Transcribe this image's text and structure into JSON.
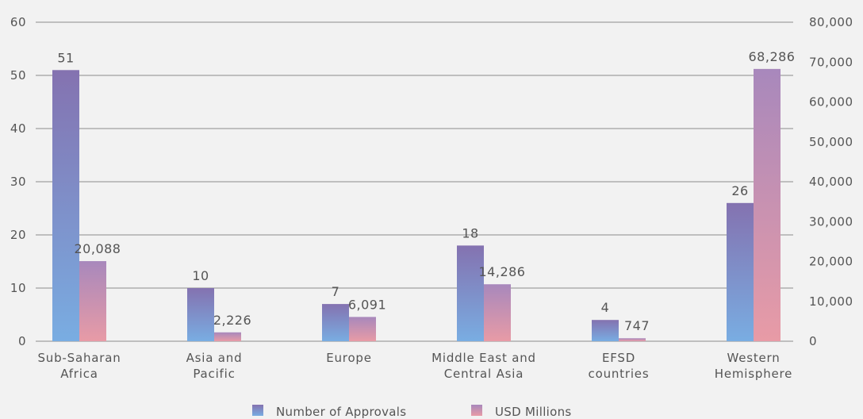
{
  "chart_data": {
    "type": "bar",
    "categories": [
      [
        "Sub-Saharan",
        "Africa"
      ],
      [
        "Asia and",
        "Pacific"
      ],
      [
        "Europe"
      ],
      [
        "Middle East and",
        "Central Asia"
      ],
      [
        "EFSD",
        "countries"
      ],
      [
        "Western",
        "Hemisphere"
      ]
    ],
    "series": [
      {
        "name": "Number of Approvals",
        "axis": "left",
        "values": [
          51,
          10,
          7,
          18,
          4,
          26
        ],
        "labels": [
          "51",
          "10",
          "7",
          "18",
          "4",
          "26"
        ]
      },
      {
        "name": "USD Millions",
        "axis": "right",
        "values": [
          20088,
          2226,
          6091,
          14286,
          747,
          68286
        ],
        "labels": [
          "20,088",
          "2,226",
          "6,091",
          "14,286",
          "747",
          "68,286"
        ]
      }
    ],
    "y_left": {
      "lim": [
        0,
        60
      ],
      "ticks": [
        "0",
        "10",
        "20",
        "30",
        "40",
        "50",
        "60"
      ]
    },
    "y_right": {
      "lim": [
        0,
        80000
      ],
      "ticks": [
        "0",
        "10,000",
        "20,000",
        "30,000",
        "40,000",
        "50,000",
        "60,000",
        "70,000",
        "80,000"
      ]
    },
    "grid": true,
    "legend_position": "bottom-center",
    "colors": {
      "approvals_top": "#8472b0",
      "approvals_bottom": "#79ade2",
      "usd_top": "#a888bc",
      "usd_bottom": "#e89ba6",
      "grid": "#8c8c8c",
      "text": "#555555",
      "background": "#f2f2f2"
    }
  }
}
